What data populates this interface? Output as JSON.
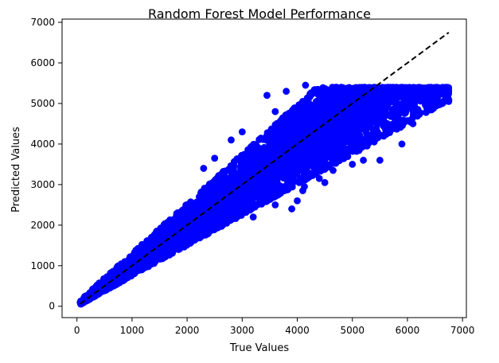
{
  "chart_data": {
    "type": "scatter",
    "title": "Random Forest Model Performance",
    "xlabel": "True Values",
    "ylabel": "Predicted Values",
    "xlim": [
      -270,
      7070
    ],
    "ylim": [
      -280,
      7080
    ],
    "xticks": [
      0,
      1000,
      2000,
      3000,
      4000,
      5000,
      6000,
      7000
    ],
    "yticks": [
      0,
      1000,
      2000,
      3000,
      4000,
      5000,
      6000,
      7000
    ],
    "grid": false,
    "legend": "none",
    "series": [
      {
        "marker_color": "#0000ff",
        "density_band": {
          "x_range": [
            60,
            6750
          ],
          "center_slope": 0.99,
          "lower_slope": 0.75,
          "upper_slope": 1.22,
          "y_cap": 5400
        },
        "points": [
          [
            80,
            90
          ],
          [
            150,
            200
          ],
          [
            220,
            180
          ],
          [
            300,
            350
          ],
          [
            400,
            420
          ],
          [
            500,
            480
          ],
          [
            600,
            650
          ],
          [
            700,
            690
          ],
          [
            800,
            870
          ],
          [
            900,
            900
          ],
          [
            1000,
            1050
          ],
          [
            1100,
            1120
          ],
          [
            1200,
            1240
          ],
          [
            1300,
            1350
          ],
          [
            1400,
            1430
          ],
          [
            1500,
            1550
          ],
          [
            1600,
            1620
          ],
          [
            1700,
            1750
          ],
          [
            1800,
            1900
          ],
          [
            1900,
            1920
          ],
          [
            2000,
            2080
          ],
          [
            2100,
            2150
          ],
          [
            2200,
            2350
          ],
          [
            2300,
            2300
          ],
          [
            2400,
            2500
          ],
          [
            2500,
            2600
          ],
          [
            2600,
            2700
          ],
          [
            2700,
            2800
          ],
          [
            2800,
            2900
          ],
          [
            2900,
            3000
          ],
          [
            3000,
            3100
          ],
          [
            3100,
            3200
          ],
          [
            3200,
            3300
          ],
          [
            3300,
            3450
          ],
          [
            3400,
            3500
          ],
          [
            3500,
            3600
          ],
          [
            3600,
            3700
          ],
          [
            3700,
            3800
          ],
          [
            3800,
            3900
          ],
          [
            3900,
            4000
          ],
          [
            4000,
            4100
          ],
          [
            4100,
            4200
          ],
          [
            4200,
            4300
          ],
          [
            4300,
            4400
          ],
          [
            4400,
            4500
          ],
          [
            4500,
            4600
          ],
          [
            4600,
            4700
          ],
          [
            4700,
            4800
          ],
          [
            4800,
            4850
          ],
          [
            4900,
            4950
          ],
          [
            5000,
            5000
          ],
          [
            5100,
            5100
          ],
          [
            5200,
            5150
          ],
          [
            5300,
            5200
          ],
          [
            5400,
            5250
          ],
          [
            5500,
            5300
          ],
          [
            5600,
            5350
          ],
          [
            5700,
            5380
          ],
          [
            5800,
            5400
          ],
          [
            5900,
            5400
          ],
          [
            6000,
            5350
          ],
          [
            6100,
            5300
          ],
          [
            6200,
            5200
          ],
          [
            6300,
            5100
          ],
          [
            6400,
            5000
          ],
          [
            6500,
            5100
          ],
          [
            6600,
            5300
          ],
          [
            6700,
            5400
          ],
          [
            6750,
            5050
          ],
          [
            6650,
            5050
          ],
          [
            2500,
            3650
          ],
          [
            3450,
            5200
          ],
          [
            3800,
            5300
          ],
          [
            4150,
            5450
          ],
          [
            3600,
            4800
          ],
          [
            3000,
            4300
          ],
          [
            2800,
            4100
          ],
          [
            2300,
            3400
          ],
          [
            4200,
            5100
          ],
          [
            4700,
            5400
          ],
          [
            3200,
            2200
          ],
          [
            3600,
            2500
          ],
          [
            4000,
            2600
          ],
          [
            4100,
            2850
          ],
          [
            4500,
            3050
          ],
          [
            5000,
            3500
          ],
          [
            5500,
            3600
          ],
          [
            5900,
            4000
          ],
          [
            6100,
            4500
          ],
          [
            3900,
            2400
          ],
          [
            4800,
            3700
          ],
          [
            4650,
            3350
          ],
          [
            4550,
            3800
          ],
          [
            4250,
            3700
          ],
          [
            4130,
            2950
          ],
          [
            4400,
            3150
          ],
          [
            5200,
            3600
          ],
          [
            4960,
            4350
          ]
        ]
      },
      {
        "line_style": "dashed",
        "line_color": "#000000",
        "x": [
          60,
          6750
        ],
        "y": [
          60,
          6750
        ]
      }
    ]
  }
}
